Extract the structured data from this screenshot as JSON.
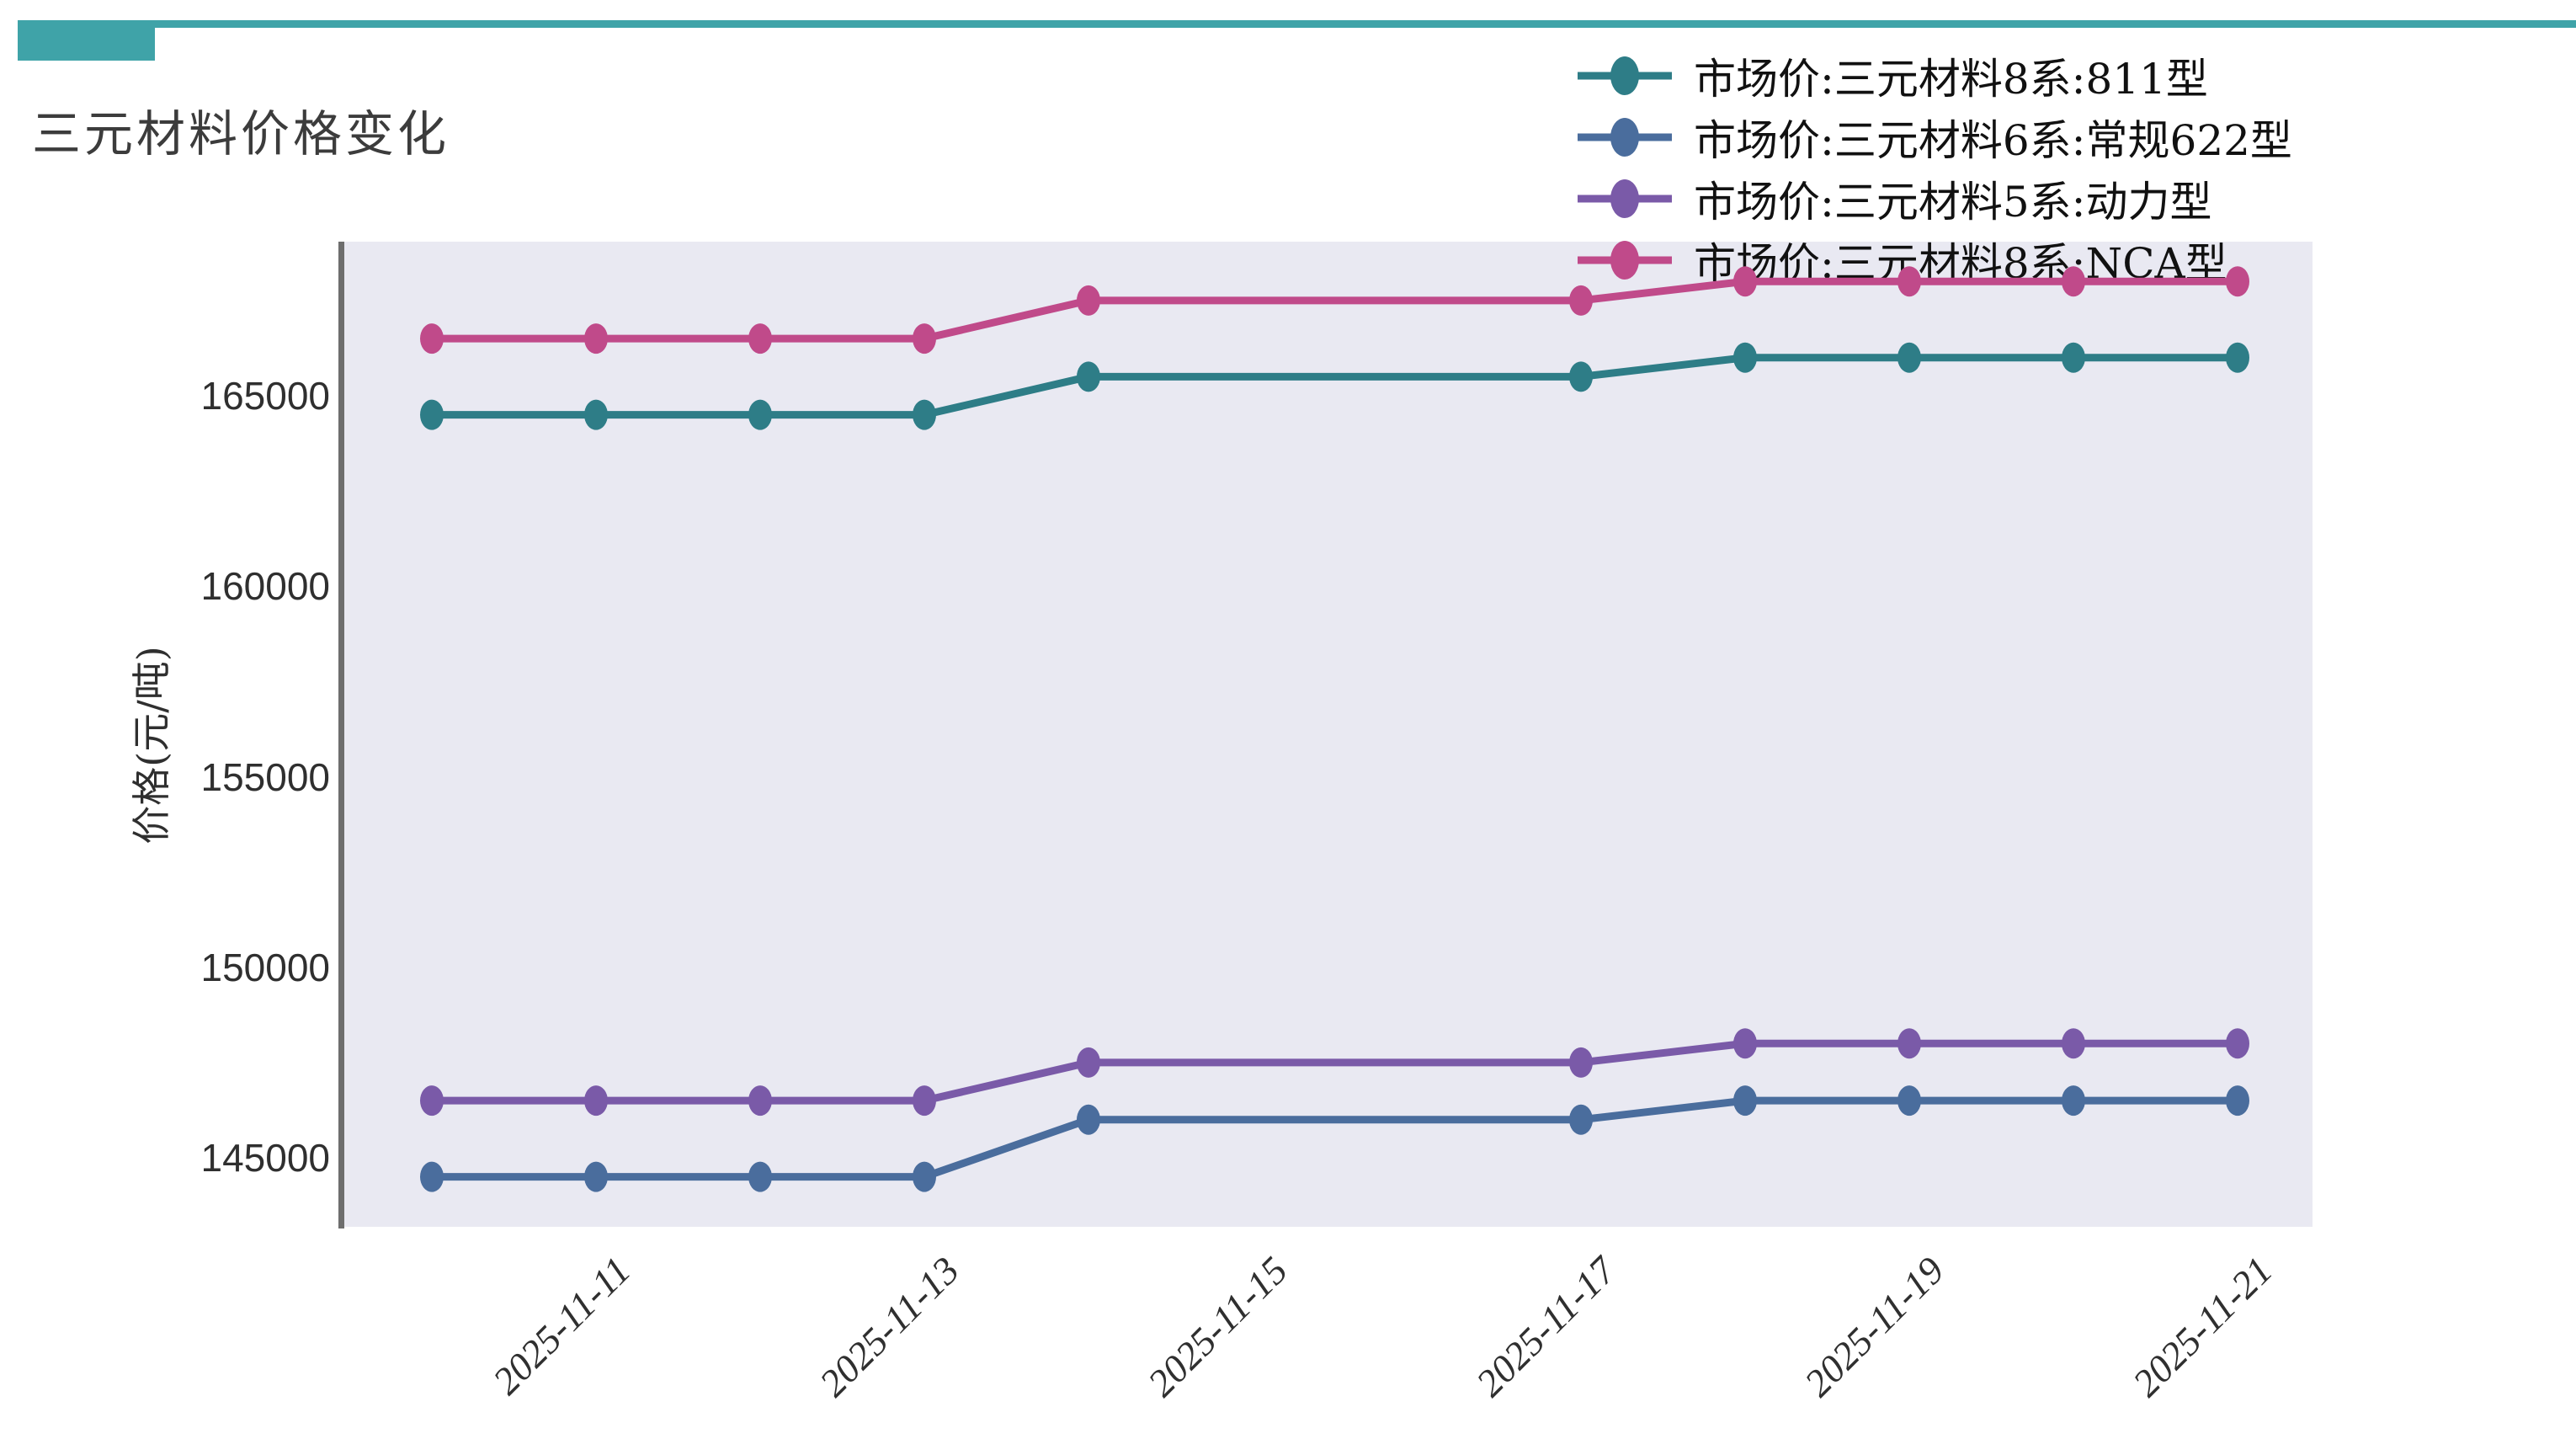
{
  "header": {
    "accent_color": "#3FA3A8"
  },
  "title": "三元材料价格变化",
  "chart_data": {
    "type": "line",
    "title": "三元材料价格变化",
    "xlabel": "",
    "ylabel": "价格(元/吨)",
    "grid": false,
    "plot_background": "#E9E9F2",
    "axis_spine_color": "#6E6E6E",
    "legend_position": "top-right",
    "x": [
      "2025-11-10",
      "2025-11-11",
      "2025-11-12",
      "2025-11-13",
      "2025-11-14",
      "2025-11-17",
      "2025-11-18",
      "2025-11-19",
      "2025-11-20",
      "2025-11-21"
    ],
    "series": [
      {
        "name": "市场价:三元材料8系:811型",
        "color": "#2E7D87",
        "values": [
          164500,
          164500,
          164500,
          164500,
          165500,
          165500,
          166000,
          166000,
          166000,
          166000
        ]
      },
      {
        "name": "市场价:三元材料6系:常规622型",
        "color": "#4A6D9D",
        "values": [
          144500,
          144500,
          144500,
          144500,
          146000,
          146000,
          146500,
          146500,
          146500,
          146500
        ]
      },
      {
        "name": "市场价:三元材料5系:动力型",
        "color": "#7A5AA8",
        "values": [
          146500,
          146500,
          146500,
          146500,
          147500,
          147500,
          148000,
          148000,
          148000,
          148000
        ]
      },
      {
        "name": "市场价:三元材料8系:NCA型",
        "color": "#C04A8A",
        "values": [
          166500,
          166500,
          166500,
          166500,
          167500,
          167500,
          168000,
          168000,
          168000,
          168000
        ]
      }
    ],
    "y_ticks": [
      165000,
      160000,
      155000,
      150000,
      145000
    ],
    "x_ticks": [
      "2025-11-11",
      "2025-11-13",
      "2025-11-15",
      "2025-11-17",
      "2025-11-19",
      "2025-11-21"
    ],
    "ylim": [
      143300,
      169000
    ]
  }
}
